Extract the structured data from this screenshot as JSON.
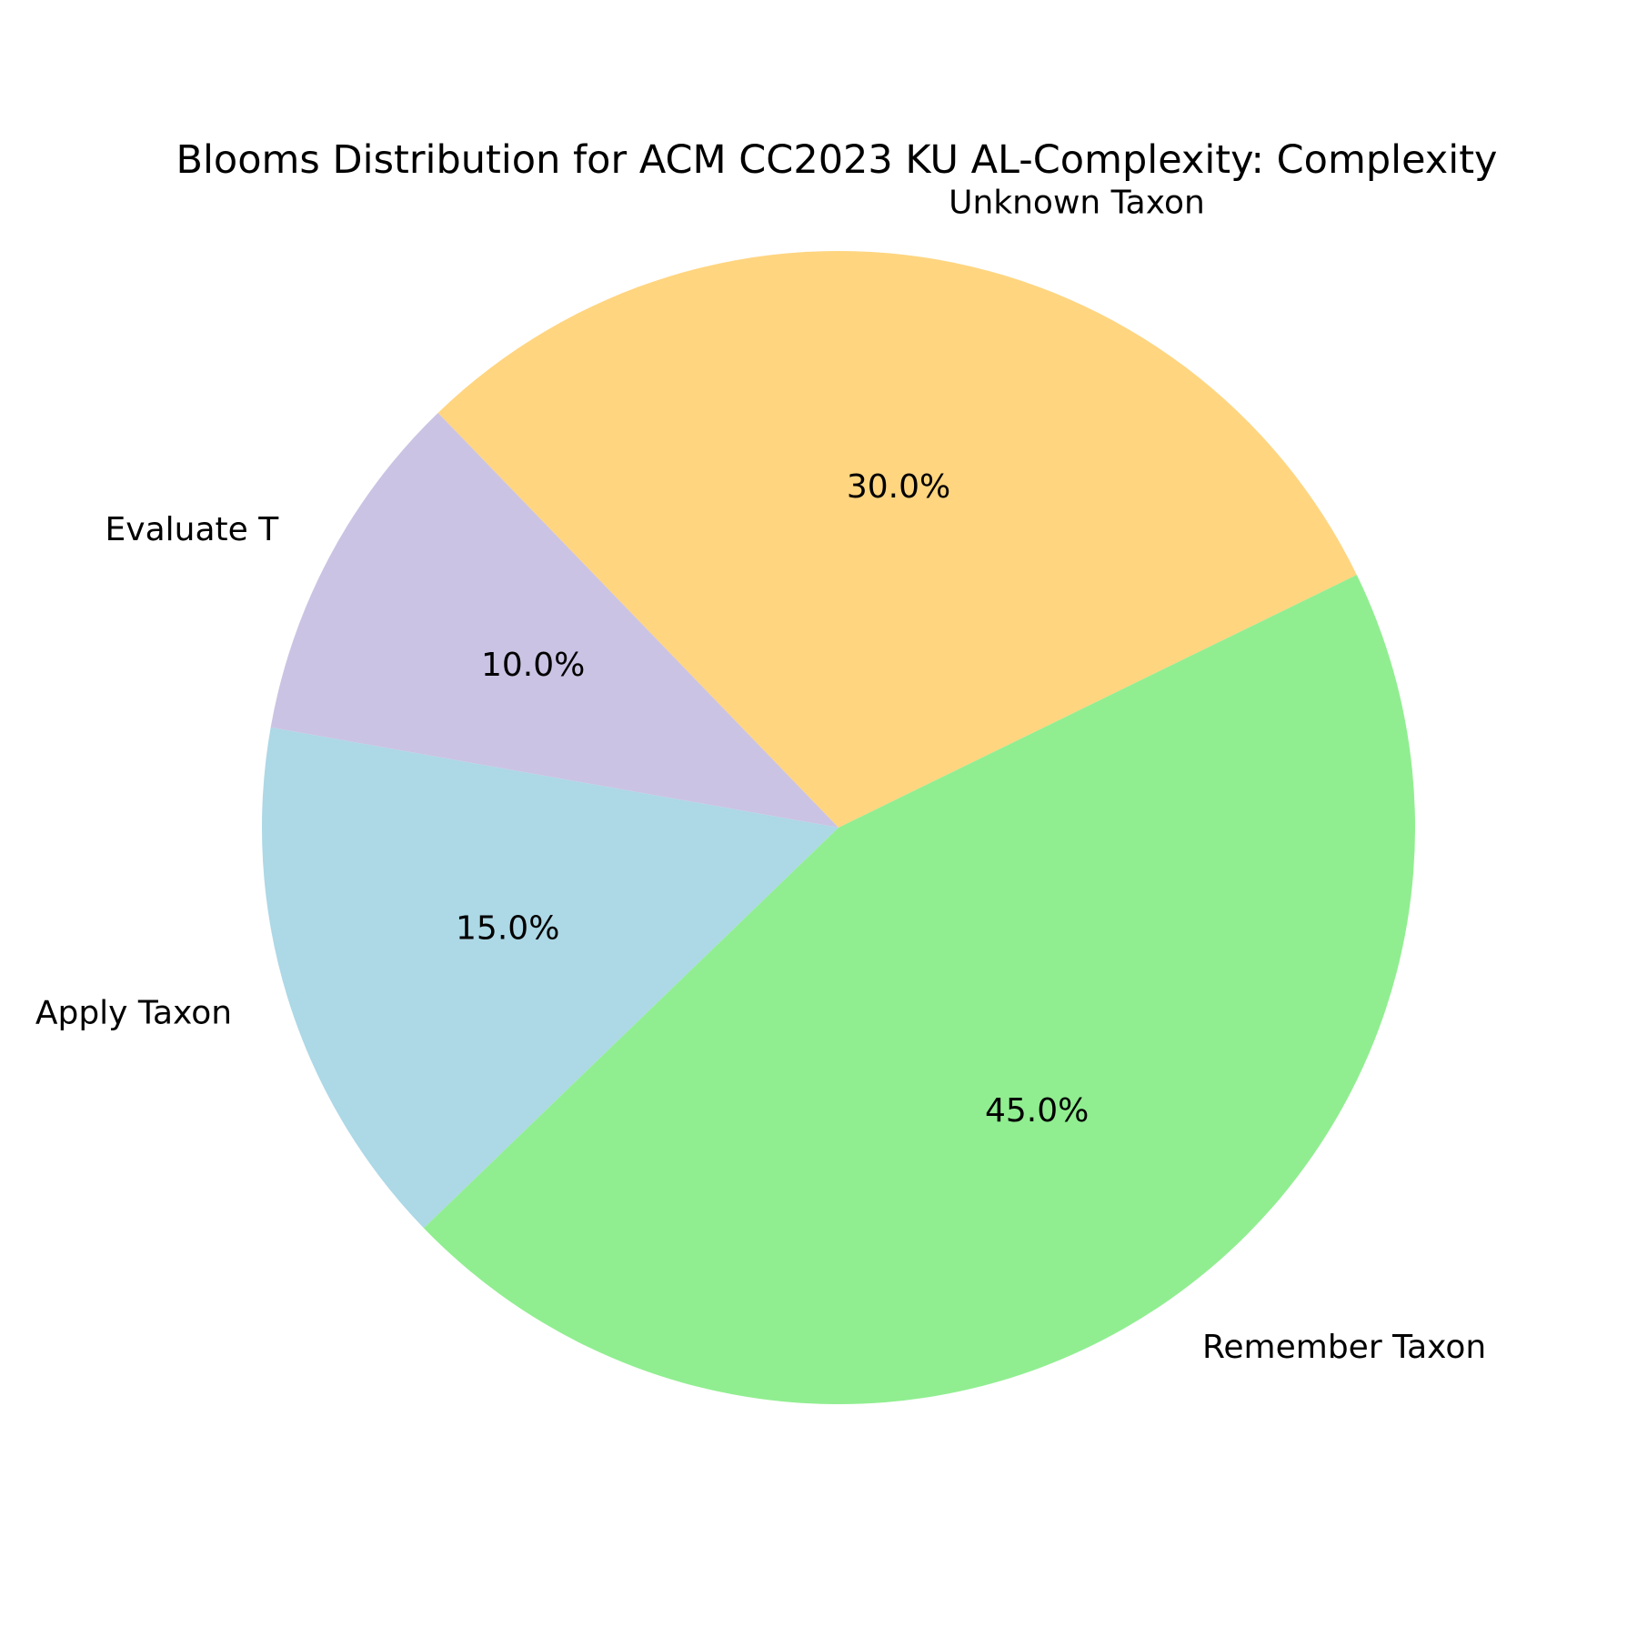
{
  "chart_data": {
    "type": "pie",
    "title": "Blooms Distribution for ACM CC2023 KU AL-Complexity: Complexity",
    "slices": [
      {
        "label": "Unknown Taxon",
        "value": 30.0,
        "pct_label": "30.0%",
        "color": "#ffd580"
      },
      {
        "label": "Evaluate T",
        "value": 10.0,
        "pct_label": "10.0%",
        "color": "#cbc3e3"
      },
      {
        "label": "Apply Taxon",
        "value": 15.0,
        "pct_label": "15.0%",
        "color": "#add8e6"
      },
      {
        "label": "Remember Taxon",
        "value": 45.0,
        "pct_label": "45.0%",
        "color": "#90ee90"
      }
    ]
  }
}
